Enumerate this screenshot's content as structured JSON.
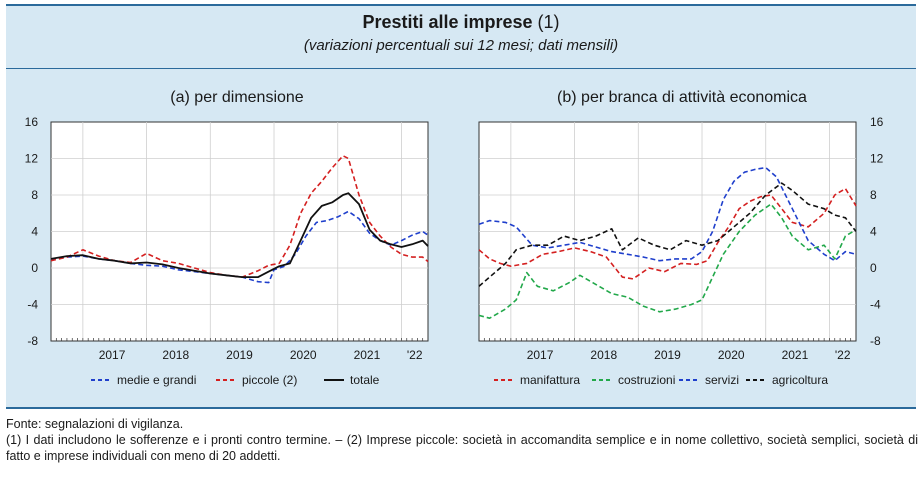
{
  "figure": {
    "title": "Prestiti alle imprese",
    "title_note": "(1)",
    "subtitle": "(variazioni percentuali sui 12 mesi; dati mensili)"
  },
  "colors": {
    "background": "#d6e8f3",
    "frame": "#2b6a9b",
    "blue": "#1f3fcc",
    "red": "#d42020",
    "black": "#111111",
    "green": "#22a84a"
  },
  "chart_data": [
    {
      "type": "line",
      "title": "(a) per dimensione",
      "x_tick_labels": [
        "2017",
        "2018",
        "2019",
        "2020",
        "2021",
        "'22"
      ],
      "x_range": [
        "2016-07",
        "2022-06"
      ],
      "ylim": [
        -8,
        16
      ],
      "yticks": [
        -8,
        -4,
        0,
        4,
        8,
        12,
        16
      ],
      "y_axis_side": "left",
      "grid": true,
      "legend_position": "bottom",
      "series": [
        {
          "name": "medie e grandi",
          "color": "#1f3fcc",
          "dash": "dashed",
          "points": [
            [
              "2016-07",
              1.0
            ],
            [
              "2016-10",
              1.2
            ],
            [
              "2017-01",
              1.3
            ],
            [
              "2017-04",
              1.0
            ],
            [
              "2017-07",
              0.8
            ],
            [
              "2017-10",
              0.5
            ],
            [
              "2018-01",
              0.3
            ],
            [
              "2018-04",
              0.2
            ],
            [
              "2018-07",
              -0.2
            ],
            [
              "2018-10",
              -0.4
            ],
            [
              "2019-01",
              -0.6
            ],
            [
              "2019-04",
              -0.8
            ],
            [
              "2019-07",
              -1.0
            ],
            [
              "2019-10",
              -1.5
            ],
            [
              "2019-12",
              -1.6
            ],
            [
              "2020-01",
              -0.2
            ],
            [
              "2020-03",
              0.2
            ],
            [
              "2020-05",
              1.5
            ],
            [
              "2020-07",
              3.5
            ],
            [
              "2020-09",
              5.0
            ],
            [
              "2020-11",
              5.2
            ],
            [
              "2021-01",
              5.6
            ],
            [
              "2021-03",
              6.2
            ],
            [
              "2021-05",
              5.4
            ],
            [
              "2021-07",
              3.8
            ],
            [
              "2021-09",
              3.0
            ],
            [
              "2021-11",
              2.5
            ],
            [
              "2022-01",
              3.0
            ],
            [
              "2022-03",
              3.6
            ],
            [
              "2022-05",
              4.0
            ],
            [
              "2022-06",
              3.6
            ]
          ]
        },
        {
          "name": "piccole (2)",
          "color": "#d42020",
          "dash": "dashed",
          "points": [
            [
              "2016-07",
              0.8
            ],
            [
              "2016-10",
              1.2
            ],
            [
              "2017-01",
              2.0
            ],
            [
              "2017-04",
              1.3
            ],
            [
              "2017-07",
              0.8
            ],
            [
              "2017-10",
              0.6
            ],
            [
              "2018-01",
              1.6
            ],
            [
              "2018-04",
              0.8
            ],
            [
              "2018-07",
              0.5
            ],
            [
              "2018-10",
              0.0
            ],
            [
              "2019-01",
              -0.5
            ],
            [
              "2019-04",
              -0.8
            ],
            [
              "2019-07",
              -1.0
            ],
            [
              "2019-10",
              -0.3
            ],
            [
              "2019-12",
              0.3
            ],
            [
              "2020-02",
              0.5
            ],
            [
              "2020-04",
              2.5
            ],
            [
              "2020-06",
              6.0
            ],
            [
              "2020-08",
              8.2
            ],
            [
              "2020-10",
              9.5
            ],
            [
              "2020-12",
              11.0
            ],
            [
              "2021-02",
              12.3
            ],
            [
              "2021-03",
              12.0
            ],
            [
              "2021-05",
              8.0
            ],
            [
              "2021-07",
              5.0
            ],
            [
              "2021-09",
              3.5
            ],
            [
              "2021-11",
              2.3
            ],
            [
              "2022-01",
              1.5
            ],
            [
              "2022-03",
              1.2
            ],
            [
              "2022-05",
              1.2
            ],
            [
              "2022-06",
              0.7
            ]
          ]
        },
        {
          "name": "totale",
          "color": "#111111",
          "dash": "solid",
          "points": [
            [
              "2016-07",
              1.0
            ],
            [
              "2016-10",
              1.3
            ],
            [
              "2017-01",
              1.4
            ],
            [
              "2017-04",
              1.0
            ],
            [
              "2017-07",
              0.8
            ],
            [
              "2017-10",
              0.5
            ],
            [
              "2018-01",
              0.6
            ],
            [
              "2018-04",
              0.4
            ],
            [
              "2018-07",
              0.0
            ],
            [
              "2018-10",
              -0.3
            ],
            [
              "2019-01",
              -0.6
            ],
            [
              "2019-04",
              -0.8
            ],
            [
              "2019-07",
              -1.0
            ],
            [
              "2019-10",
              -1.0
            ],
            [
              "2019-12",
              -0.4
            ],
            [
              "2020-02",
              0.2
            ],
            [
              "2020-04",
              0.5
            ],
            [
              "2020-06",
              3.0
            ],
            [
              "2020-08",
              5.5
            ],
            [
              "2020-10",
              6.8
            ],
            [
              "2020-12",
              7.2
            ],
            [
              "2021-02",
              8.0
            ],
            [
              "2021-03",
              8.2
            ],
            [
              "2021-05",
              7.0
            ],
            [
              "2021-07",
              4.2
            ],
            [
              "2021-09",
              3.0
            ],
            [
              "2021-11",
              2.6
            ],
            [
              "2022-01",
              2.3
            ],
            [
              "2022-03",
              2.6
            ],
            [
              "2022-05",
              3.0
            ],
            [
              "2022-06",
              2.4
            ]
          ]
        }
      ]
    },
    {
      "type": "line",
      "title": "(b) per branca di attività economica",
      "x_tick_labels": [
        "2017",
        "2018",
        "2019",
        "2020",
        "2021",
        "'22"
      ],
      "x_range": [
        "2016-07",
        "2022-06"
      ],
      "ylim": [
        -8,
        16
      ],
      "yticks": [
        -8,
        -4,
        0,
        4,
        8,
        12,
        16
      ],
      "y_axis_side": "right",
      "grid": true,
      "legend_position": "bottom",
      "series": [
        {
          "name": "manifattura",
          "color": "#d42020",
          "dash": "dashed",
          "points": [
            [
              "2016-07",
              2.0
            ],
            [
              "2016-09",
              1.0
            ],
            [
              "2016-11",
              0.5
            ],
            [
              "2017-01",
              0.2
            ],
            [
              "2017-04",
              0.5
            ],
            [
              "2017-07",
              1.5
            ],
            [
              "2017-10",
              1.8
            ],
            [
              "2018-01",
              2.2
            ],
            [
              "2018-04",
              1.8
            ],
            [
              "2018-07",
              1.2
            ],
            [
              "2018-10",
              -1.0
            ],
            [
              "2018-12",
              -1.2
            ],
            [
              "2019-03",
              0.0
            ],
            [
              "2019-06",
              -0.4
            ],
            [
              "2019-09",
              0.5
            ],
            [
              "2019-12",
              0.4
            ],
            [
              "2020-02",
              0.8
            ],
            [
              "2020-04",
              2.8
            ],
            [
              "2020-06",
              4.5
            ],
            [
              "2020-08",
              6.5
            ],
            [
              "2020-10",
              7.3
            ],
            [
              "2020-12",
              7.8
            ],
            [
              "2021-02",
              8.0
            ],
            [
              "2021-04",
              6.5
            ],
            [
              "2021-06",
              5.0
            ],
            [
              "2021-09",
              4.5
            ],
            [
              "2021-12",
              6.0
            ],
            [
              "2022-02",
              8.0
            ],
            [
              "2022-04",
              8.7
            ],
            [
              "2022-06",
              6.8
            ]
          ]
        },
        {
          "name": "costruzioni",
          "color": "#22a84a",
          "dash": "dashed",
          "points": [
            [
              "2016-07",
              -5.2
            ],
            [
              "2016-09",
              -5.5
            ],
            [
              "2016-12",
              -4.5
            ],
            [
              "2017-02",
              -3.5
            ],
            [
              "2017-04",
              -0.5
            ],
            [
              "2017-06",
              -2.0
            ],
            [
              "2017-09",
              -2.5
            ],
            [
              "2017-12",
              -1.6
            ],
            [
              "2018-02",
              -0.8
            ],
            [
              "2018-05",
              -1.8
            ],
            [
              "2018-08",
              -2.8
            ],
            [
              "2018-11",
              -3.2
            ],
            [
              "2019-02",
              -4.2
            ],
            [
              "2019-05",
              -4.8
            ],
            [
              "2019-08",
              -4.5
            ],
            [
              "2019-11",
              -4.0
            ],
            [
              "2020-01",
              -3.5
            ],
            [
              "2020-03",
              -1.0
            ],
            [
              "2020-05",
              1.5
            ],
            [
              "2020-08",
              4.0
            ],
            [
              "2020-11",
              5.8
            ],
            [
              "2021-02",
              7.0
            ],
            [
              "2021-04",
              5.5
            ],
            [
              "2021-06",
              3.5
            ],
            [
              "2021-09",
              2.0
            ],
            [
              "2021-12",
              2.5
            ],
            [
              "2022-02",
              1.0
            ],
            [
              "2022-04",
              3.5
            ],
            [
              "2022-06",
              4.2
            ]
          ]
        },
        {
          "name": "servizi",
          "color": "#1f3fcc",
          "dash": "dashed",
          "points": [
            [
              "2016-07",
              4.8
            ],
            [
              "2016-09",
              5.2
            ],
            [
              "2016-12",
              5.0
            ],
            [
              "2017-02",
              4.5
            ],
            [
              "2017-05",
              2.5
            ],
            [
              "2017-08",
              2.2
            ],
            [
              "2017-11",
              2.5
            ],
            [
              "2018-02",
              2.8
            ],
            [
              "2018-05",
              2.3
            ],
            [
              "2018-08",
              1.8
            ],
            [
              "2018-11",
              1.5
            ],
            [
              "2019-02",
              1.2
            ],
            [
              "2019-05",
              0.8
            ],
            [
              "2019-08",
              1.0
            ],
            [
              "2019-11",
              1.0
            ],
            [
              "2020-01",
              1.8
            ],
            [
              "2020-03",
              4.0
            ],
            [
              "2020-05",
              7.5
            ],
            [
              "2020-07",
              9.5
            ],
            [
              "2020-09",
              10.5
            ],
            [
              "2020-11",
              10.8
            ],
            [
              "2021-01",
              11.0
            ],
            [
              "2021-03",
              10.0
            ],
            [
              "2021-06",
              6.5
            ],
            [
              "2021-09",
              3.0
            ],
            [
              "2021-12",
              1.5
            ],
            [
              "2022-02",
              0.8
            ],
            [
              "2022-04",
              1.8
            ],
            [
              "2022-06",
              1.5
            ]
          ]
        },
        {
          "name": "agricoltura",
          "color": "#111111",
          "dash": "dashed",
          "points": [
            [
              "2016-07",
              -2.0
            ],
            [
              "2016-09",
              -1.0
            ],
            [
              "2016-12",
              0.5
            ],
            [
              "2017-02",
              2.0
            ],
            [
              "2017-05",
              2.5
            ],
            [
              "2017-08",
              2.5
            ],
            [
              "2017-11",
              3.5
            ],
            [
              "2018-02",
              3.0
            ],
            [
              "2018-05",
              3.5
            ],
            [
              "2018-08",
              4.3
            ],
            [
              "2018-10",
              2.0
            ],
            [
              "2019-01",
              3.3
            ],
            [
              "2019-04",
              2.5
            ],
            [
              "2019-07",
              2.0
            ],
            [
              "2019-10",
              3.0
            ],
            [
              "2020-01",
              2.5
            ],
            [
              "2020-04",
              3.0
            ],
            [
              "2020-07",
              4.5
            ],
            [
              "2020-10",
              6.0
            ],
            [
              "2021-01",
              8.0
            ],
            [
              "2021-04",
              9.3
            ],
            [
              "2021-06",
              8.5
            ],
            [
              "2021-09",
              7.0
            ],
            [
              "2021-12",
              6.5
            ],
            [
              "2022-02",
              5.8
            ],
            [
              "2022-04",
              5.5
            ],
            [
              "2022-06",
              4.0
            ]
          ]
        }
      ]
    }
  ],
  "notes": {
    "source": "Fonte: segnalazioni di vigilanza.",
    "footnote_1": "(1) I dati includono le sofferenze e i pronti contro termine. – (2) Imprese piccole: società in accomandita semplice e in nome collettivo, società semplici, società di fatto e imprese individuali con meno di 20 addetti."
  }
}
